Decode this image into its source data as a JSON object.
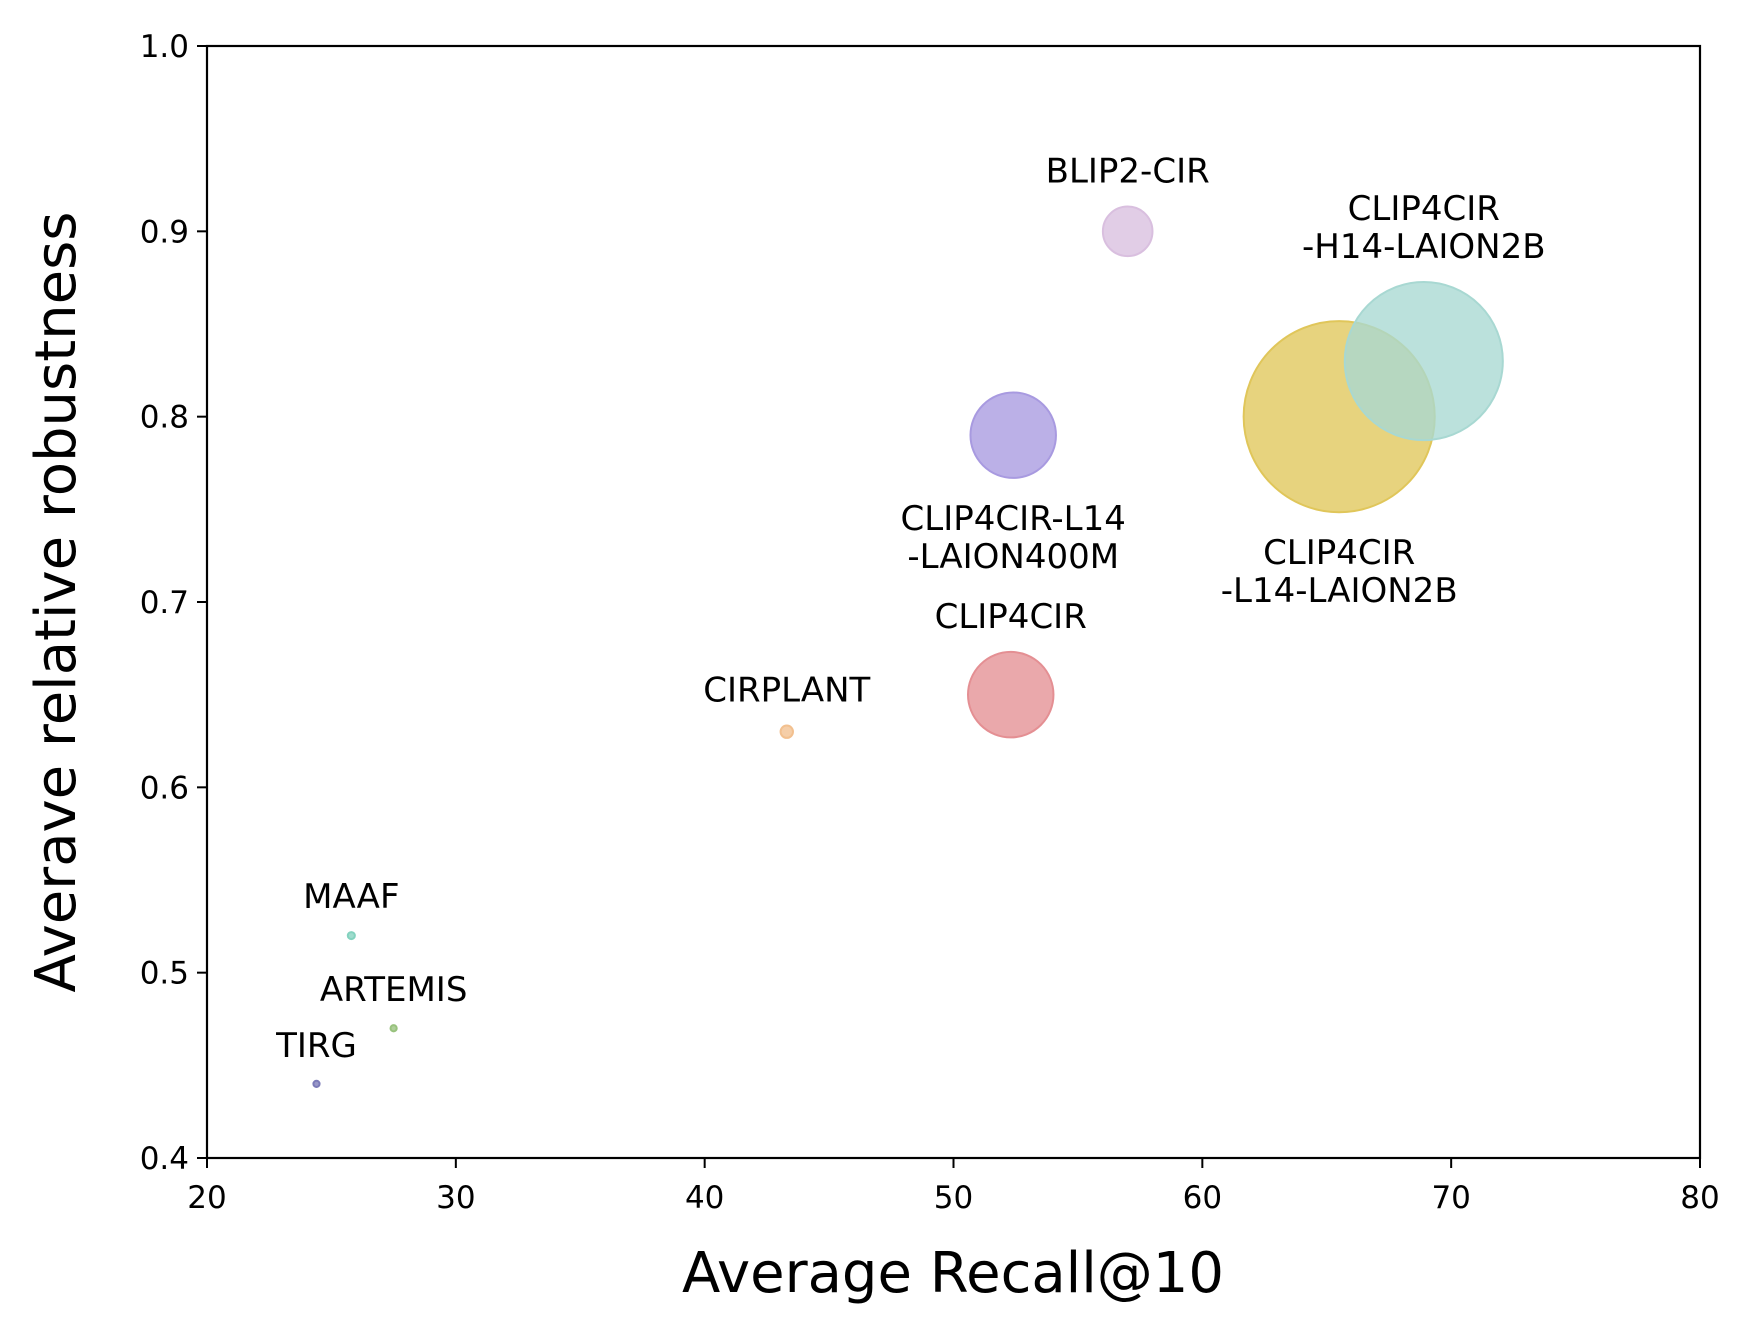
{
  "chart_data": {
    "type": "scatter",
    "title": "",
    "xlabel": "Average Recall@10",
    "ylabel": "Averave relative robustness",
    "xlim": [
      20,
      80
    ],
    "ylim": [
      0.4,
      1.0
    ],
    "x_ticks": [
      "20",
      "30",
      "40",
      "50",
      "60",
      "70",
      "80"
    ],
    "y_ticks": [
      "0.4",
      "0.5",
      "0.6",
      "0.7",
      "0.8",
      "0.9",
      "1.0"
    ],
    "grid": false,
    "legend": "none",
    "size_encoding": "relative bubble area",
    "points": [
      {
        "label": "TIRG",
        "x": 24.4,
        "y": 0.44,
        "size": 1,
        "color": "#7b7ab8"
      },
      {
        "label": "ARTEMIS",
        "x": 27.5,
        "y": 0.47,
        "size": 1,
        "color": "#98c27d"
      },
      {
        "label": "MAAF",
        "x": 25.8,
        "y": 0.52,
        "size": 1.3,
        "color": "#84d2bf"
      },
      {
        "label": "CIRPLANT",
        "x": 43.3,
        "y": 0.63,
        "size": 4,
        "color": "#f2c08f"
      },
      {
        "label": "CLIP4CIR",
        "x": 52.3,
        "y": 0.65,
        "size": 190,
        "color": "#e48f93"
      },
      {
        "label": "CLIP4CIR-L14\n-LAION400M",
        "x": 52.4,
        "y": 0.79,
        "size": 190,
        "color": "#a89ae0"
      },
      {
        "label": "BLIP2-CIR",
        "x": 57.0,
        "y": 0.9,
        "size": 64,
        "color": "#d9bfdf"
      },
      {
        "label": "CLIP4CIR\n-L14-LAION2B",
        "x": 65.5,
        "y": 0.8,
        "size": 950,
        "color": "#e0c65a"
      },
      {
        "label": "CLIP4CIR\n-H14-LAION2B",
        "x": 68.9,
        "y": 0.83,
        "size": 650,
        "color": "#a8d8d2"
      }
    ]
  }
}
